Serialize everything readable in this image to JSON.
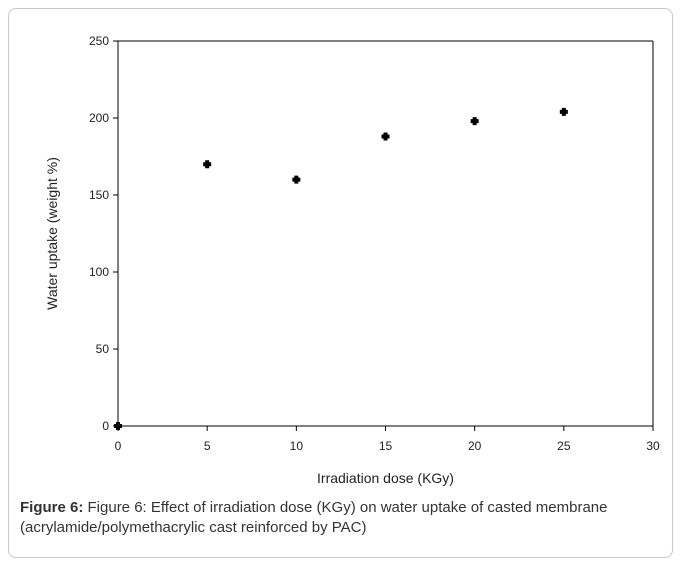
{
  "chart_data": {
    "type": "scatter",
    "title": "",
    "xlabel": "Irradiation dose (KGy)",
    "ylabel": "Water uptake (weight %)",
    "xlim": [
      0,
      30
    ],
    "ylim": [
      0,
      250
    ],
    "xticks": [
      0,
      5,
      10,
      15,
      20,
      25,
      30
    ],
    "yticks": [
      0,
      50,
      100,
      150,
      200,
      250
    ],
    "grid": false,
    "legend": "none",
    "marker_color": "#000000",
    "series": [
      {
        "x": [
          0,
          5,
          10,
          15,
          20,
          25
        ],
        "y": [
          0,
          170,
          160,
          188,
          198,
          204
        ]
      }
    ]
  },
  "caption": {
    "label": "Figure 6:",
    "text": " Figure 6: Effect of irradiation dose (KGy) on water uptake of casted membrane (acrylamide/polymethacrylic cast reinforced by PAC)"
  }
}
